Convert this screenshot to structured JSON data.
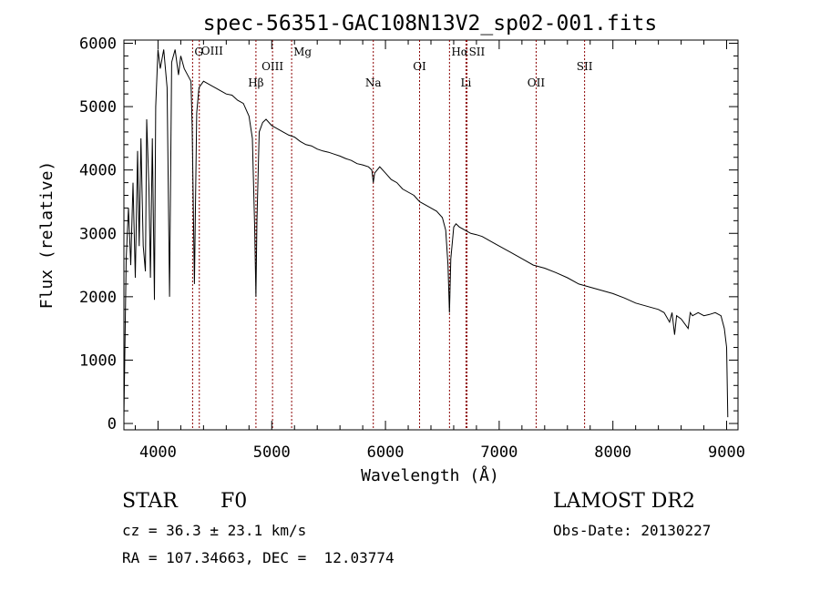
{
  "chart_data": {
    "type": "line",
    "title": "spec-56351-GAC108N13V2_sp02-001.fits",
    "xlabel": "Wavelength (Å)",
    "ylabel": "Flux (relative)",
    "xlim": [
      3700,
      9100
    ],
    "ylim": [
      -100,
      6050
    ],
    "xticks": [
      4000,
      5000,
      6000,
      7000,
      8000,
      9000
    ],
    "yticks": [
      0,
      1000,
      2000,
      3000,
      4000,
      5000,
      6000
    ],
    "grid": false,
    "series": [
      {
        "x": [
          3700,
          3720,
          3740,
          3760,
          3780,
          3800,
          3820,
          3835,
          3850,
          3870,
          3889,
          3900,
          3920,
          3933,
          3950,
          3968,
          3980,
          4000,
          4020,
          4050,
          4080,
          4101,
          4120,
          4150,
          4180,
          4200,
          4230,
          4260,
          4290,
          4300,
          4320,
          4340,
          4360,
          4400,
          4450,
          4500,
          4550,
          4600,
          4650,
          4700,
          4750,
          4800,
          4830,
          4850,
          4861,
          4870,
          4890,
          4920,
          4950,
          5000,
          5050,
          5100,
          5150,
          5200,
          5250,
          5300,
          5350,
          5400,
          5450,
          5500,
          5550,
          5600,
          5650,
          5700,
          5750,
          5800,
          5850,
          5880,
          5893,
          5905,
          5950,
          6000,
          6050,
          6100,
          6150,
          6200,
          6250,
          6300,
          6350,
          6400,
          6450,
          6500,
          6530,
          6550,
          6563,
          6575,
          6600,
          6620,
          6650,
          6700,
          6750,
          6800,
          6850,
          6900,
          6950,
          7000,
          7100,
          7200,
          7300,
          7400,
          7500,
          7600,
          7700,
          7800,
          7900,
          8000,
          8100,
          8200,
          8300,
          8400,
          8450,
          8498,
          8520,
          8542,
          8560,
          8600,
          8662,
          8680,
          8700,
          8750,
          8800,
          8850,
          8900,
          8950,
          8980,
          9000,
          9010
        ],
        "y": [
          100,
          2600,
          3400,
          2500,
          3800,
          2300,
          4300,
          2800,
          4500,
          2800,
          2400,
          4800,
          3700,
          2300,
          4500,
          1950,
          5000,
          5900,
          5600,
          5900,
          5300,
          2000,
          5700,
          5900,
          5500,
          5800,
          5600,
          5500,
          5400,
          4700,
          2200,
          4900,
          5300,
          5400,
          5350,
          5300,
          5250,
          5200,
          5180,
          5100,
          5050,
          4850,
          4500,
          3100,
          2000,
          3200,
          4600,
          4750,
          4800,
          4700,
          4650,
          4600,
          4550,
          4520,
          4450,
          4400,
          4380,
          4330,
          4300,
          4280,
          4250,
          4220,
          4180,
          4150,
          4100,
          4080,
          4050,
          4000,
          3800,
          3950,
          4050,
          3950,
          3850,
          3800,
          3700,
          3650,
          3600,
          3500,
          3450,
          3400,
          3350,
          3250,
          3050,
          2500,
          1750,
          2600,
          3100,
          3150,
          3100,
          3050,
          3000,
          2980,
          2950,
          2900,
          2850,
          2800,
          2700,
          2600,
          2500,
          2450,
          2380,
          2300,
          2200,
          2150,
          2100,
          2050,
          1980,
          1900,
          1850,
          1800,
          1750,
          1600,
          1750,
          1400,
          1700,
          1650,
          1500,
          1750,
          1700,
          1750,
          1700,
          1720,
          1750,
          1700,
          1500,
          1200,
          100
        ]
      }
    ],
    "spectral_lines": [
      {
        "name": "G",
        "x": 4304,
        "row": 1
      },
      {
        "name": "OIII",
        "x": 4363,
        "row": 0
      },
      {
        "name": "Hβ",
        "x": 4861,
        "row": 3
      },
      {
        "name": "OIII",
        "x": 5007,
        "row": 2
      },
      {
        "name": "Mg",
        "x": 5175,
        "row": 1
      },
      {
        "name": "Na",
        "x": 5893,
        "row": 3
      },
      {
        "name": "OI",
        "x": 6300,
        "row": 2
      },
      {
        "name": "Hα",
        "x": 6563,
        "row": 1
      },
      {
        "name": "SII",
        "x": 6717,
        "row": 1
      },
      {
        "name": "Li",
        "x": 6708,
        "row": 3
      },
      {
        "name": "OII",
        "x": 7325,
        "row": 3
      },
      {
        "name": "SII",
        "x": 7751,
        "row": 2
      }
    ],
    "line_color": "#000000",
    "marker_color": "#8b0000"
  },
  "info": {
    "object_type": "STAR",
    "subclass": "F0",
    "cz": "cz = 36.3 ± 23.1 km/s",
    "radec": "RA = 107.34663, DEC =  12.03774",
    "survey": "LAMOST DR2",
    "obs_date": "Obs-Date: 20130227"
  }
}
